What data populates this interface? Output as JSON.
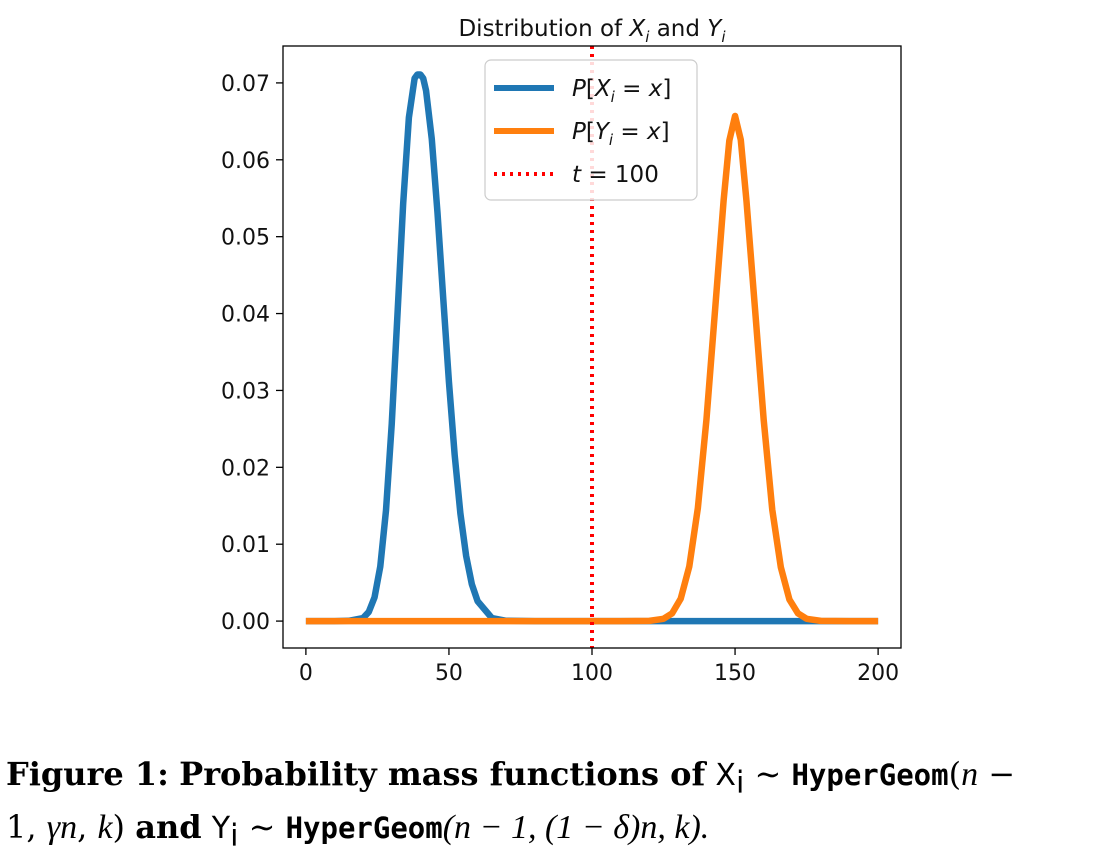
{
  "chart_data": {
    "type": "line",
    "title": "Distribution of X_i and Y_i",
    "xlim": [
      -8,
      208
    ],
    "ylim": [
      -0.0035,
      0.0748
    ],
    "xticks": [
      0,
      50,
      100,
      150,
      200
    ],
    "xtick_labels": [
      "0",
      "50",
      "100",
      "150",
      "200"
    ],
    "yticks": [
      0.0,
      0.01,
      0.02,
      0.03,
      0.04,
      0.05,
      0.06,
      0.07
    ],
    "ytick_labels": [
      "0.00",
      "0.01",
      "0.02",
      "0.03",
      "0.04",
      "0.05",
      "0.06",
      "0.07"
    ],
    "grid": false,
    "legend_position": "top-center",
    "series": [
      {
        "name": "P[X_i = x]",
        "color": "#1f77b4",
        "peak_x": 40,
        "peak_y": 0.0711,
        "x": [
          0,
          5,
          10,
          15,
          20,
          22,
          24,
          26,
          28,
          30,
          32,
          34,
          36,
          38,
          39,
          40,
          41,
          42,
          44,
          46,
          48,
          50,
          52,
          54,
          56,
          58,
          60,
          65,
          70,
          80,
          100,
          120,
          140,
          160,
          180,
          200
        ],
        "y": [
          0,
          0,
          0,
          4e-05,
          0.0004,
          0.0012,
          0.0031,
          0.0071,
          0.0144,
          0.0256,
          0.0398,
          0.0543,
          0.0655,
          0.0706,
          0.0711,
          0.0711,
          0.0706,
          0.069,
          0.0627,
          0.0531,
          0.042,
          0.0311,
          0.0216,
          0.014,
          0.0085,
          0.0048,
          0.0026,
          0.0004,
          4e-05,
          0,
          0,
          0,
          0,
          0,
          0,
          0
        ]
      },
      {
        "name": "P[Y_i = x]",
        "color": "#ff7f0e",
        "peak_x": 150,
        "peak_y": 0.0657,
        "x": [
          0,
          20,
          40,
          60,
          80,
          100,
          110,
          120,
          125,
          128,
          131,
          134,
          137,
          140,
          143,
          146,
          148,
          150,
          152,
          154,
          157,
          160,
          163,
          166,
          169,
          172,
          175,
          180,
          190,
          200
        ],
        "y": [
          0,
          0,
          0,
          0,
          0,
          0,
          0,
          3e-05,
          0.0003,
          0.001,
          0.0029,
          0.0071,
          0.0147,
          0.0262,
          0.0404,
          0.0547,
          0.0625,
          0.0657,
          0.0626,
          0.0546,
          0.0405,
          0.0262,
          0.0145,
          0.007,
          0.0028,
          0.001,
          0.0003,
          3e-05,
          0,
          0
        ]
      },
      {
        "name": "t = 100",
        "color": "#ff0000",
        "style": "dotted",
        "vertical_x": 100
      }
    ]
  },
  "caption": {
    "label": "Figure 1:",
    "text_before": "Probability mass functions of",
    "x_var": "X",
    "x_sub": "i",
    "sim1": "∼",
    "dist": "HyperGeom",
    "args1": "(n − 1, γn, k)",
    "and": "and",
    "y_var": "Y",
    "y_sub": "i",
    "sim2": "∼",
    "args2": "(n − 1, (1 − δ)n, k).",
    "n_char": "n",
    "minus": " −",
    "one": "1,",
    "gamma_n": "γn",
    "k": "k",
    "paren_open": "(",
    "paren_close": ")",
    "comma": ","
  }
}
